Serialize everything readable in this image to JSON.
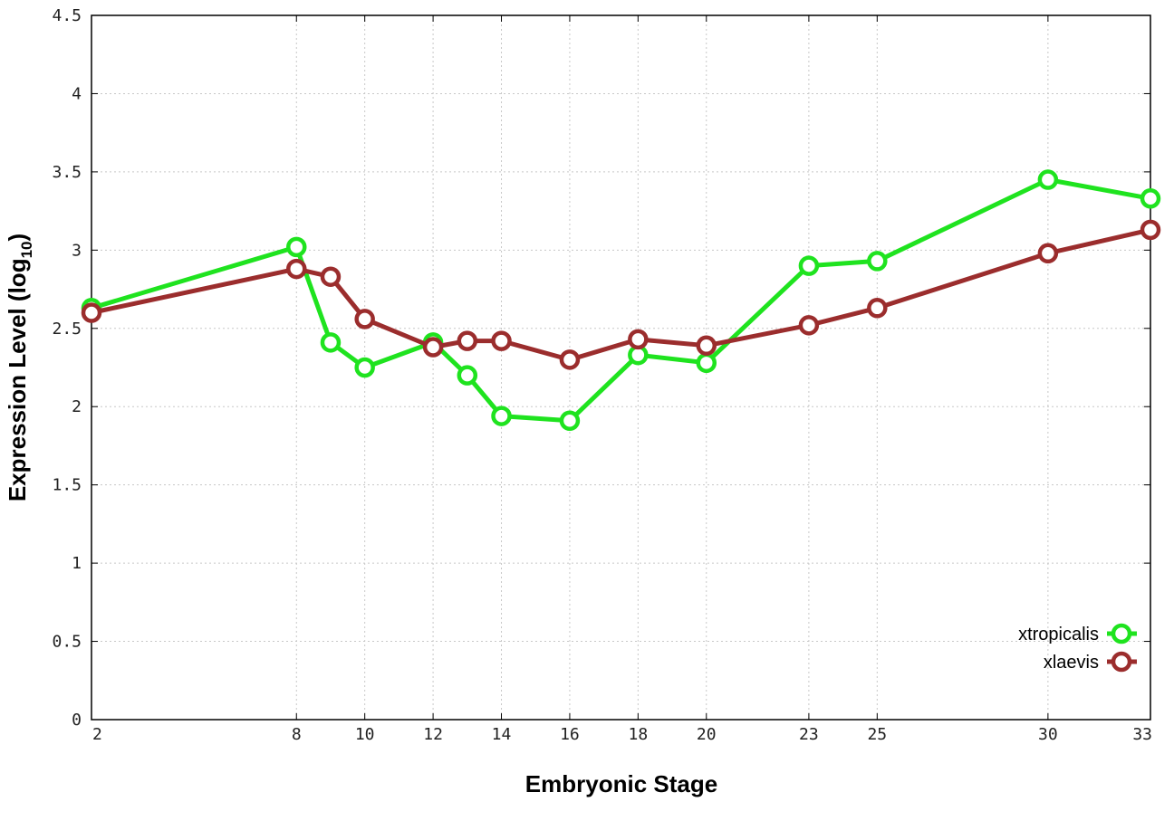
{
  "chart_data": {
    "type": "line",
    "xlabel": "Embryonic Stage",
    "ylabel_main": "Expression Level (log",
    "ylabel_sub": "10",
    "ylabel_close": ")",
    "x": [
      2,
      8,
      9,
      10,
      12,
      13,
      14,
      16,
      18,
      20,
      23,
      25,
      30,
      33
    ],
    "x_tick_labels": [
      "2",
      "8",
      "10",
      "12",
      "14",
      "16",
      "18",
      "20",
      "23",
      "25",
      "30",
      "33"
    ],
    "y_ticks": [
      0,
      0.5,
      1,
      1.5,
      2,
      2.5,
      3,
      3.5,
      4,
      4.5
    ],
    "ylim": [
      0,
      4.5
    ],
    "grid": true,
    "legend_position": "bottom-right",
    "series": [
      {
        "name": "xtropicalis",
        "color": "#1fe31f",
        "values": [
          2.63,
          3.02,
          2.41,
          2.25,
          2.41,
          2.2,
          1.94,
          1.91,
          2.33,
          2.28,
          2.9,
          2.93,
          3.45,
          3.33
        ]
      },
      {
        "name": "xlaevis",
        "color": "#9b2d2d",
        "values": [
          2.6,
          2.88,
          2.83,
          2.56,
          2.38,
          2.42,
          2.42,
          2.3,
          2.43,
          2.39,
          2.52,
          2.63,
          2.98,
          3.13
        ]
      }
    ]
  }
}
